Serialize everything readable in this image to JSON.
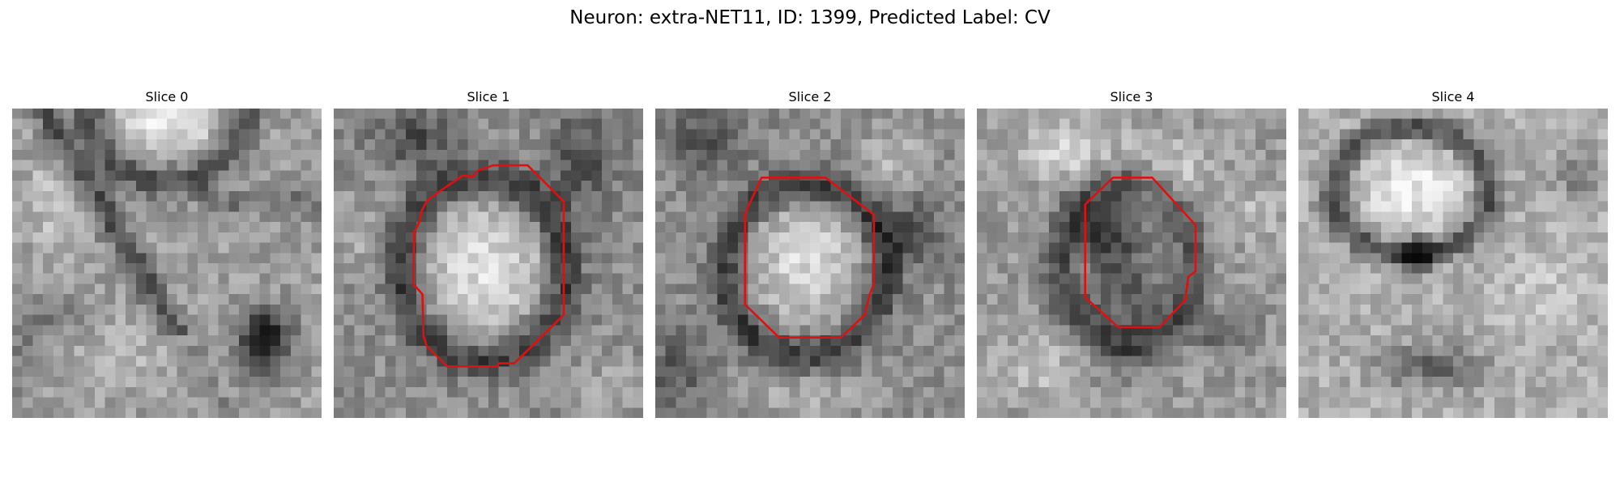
{
  "figure": {
    "title": "Neuron: extra-NET11, ID: 1399, Predicted Label: CV"
  },
  "slices": [
    {
      "title": "Slice 0",
      "has_contour": false
    },
    {
      "title": "Slice 1",
      "has_contour": true
    },
    {
      "title": "Slice 2",
      "has_contour": true
    },
    {
      "title": "Slice 3",
      "has_contour": true
    },
    {
      "title": "Slice 4",
      "has_contour": false
    }
  ],
  "colors": {
    "contour": "#dd1111",
    "background": "#ffffff"
  }
}
